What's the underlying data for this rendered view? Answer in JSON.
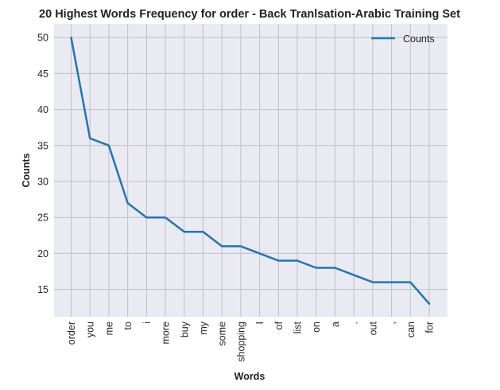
{
  "chart_data": {
    "type": "line",
    "title": "20 Highest Words Frequency for order - Back Tranlsation-Arabic Training Set",
    "xlabel": "Words",
    "ylabel": "Counts",
    "categories": [
      "order",
      "you",
      "me",
      "to",
      "i",
      "more",
      "buy",
      "my",
      "some",
      "shopping",
      "I",
      "of",
      "list",
      "on",
      "a",
      ".",
      "out",
      ",",
      "can",
      "for"
    ],
    "series": [
      {
        "name": "Counts",
        "values": [
          50,
          36,
          35,
          27,
          25,
          25,
          23,
          23,
          21,
          21,
          20,
          19,
          19,
          18,
          18,
          17,
          16,
          16,
          16,
          13
        ],
        "color": "#1f77b4"
      }
    ],
    "ylim": [
      11.2,
      51.9
    ],
    "yticks": [
      15,
      20,
      25,
      30,
      35,
      40,
      45,
      50
    ],
    "grid": true,
    "legend_position": "top-right",
    "background": "#eaeaf2",
    "grid_color": "#c0c0c8"
  }
}
